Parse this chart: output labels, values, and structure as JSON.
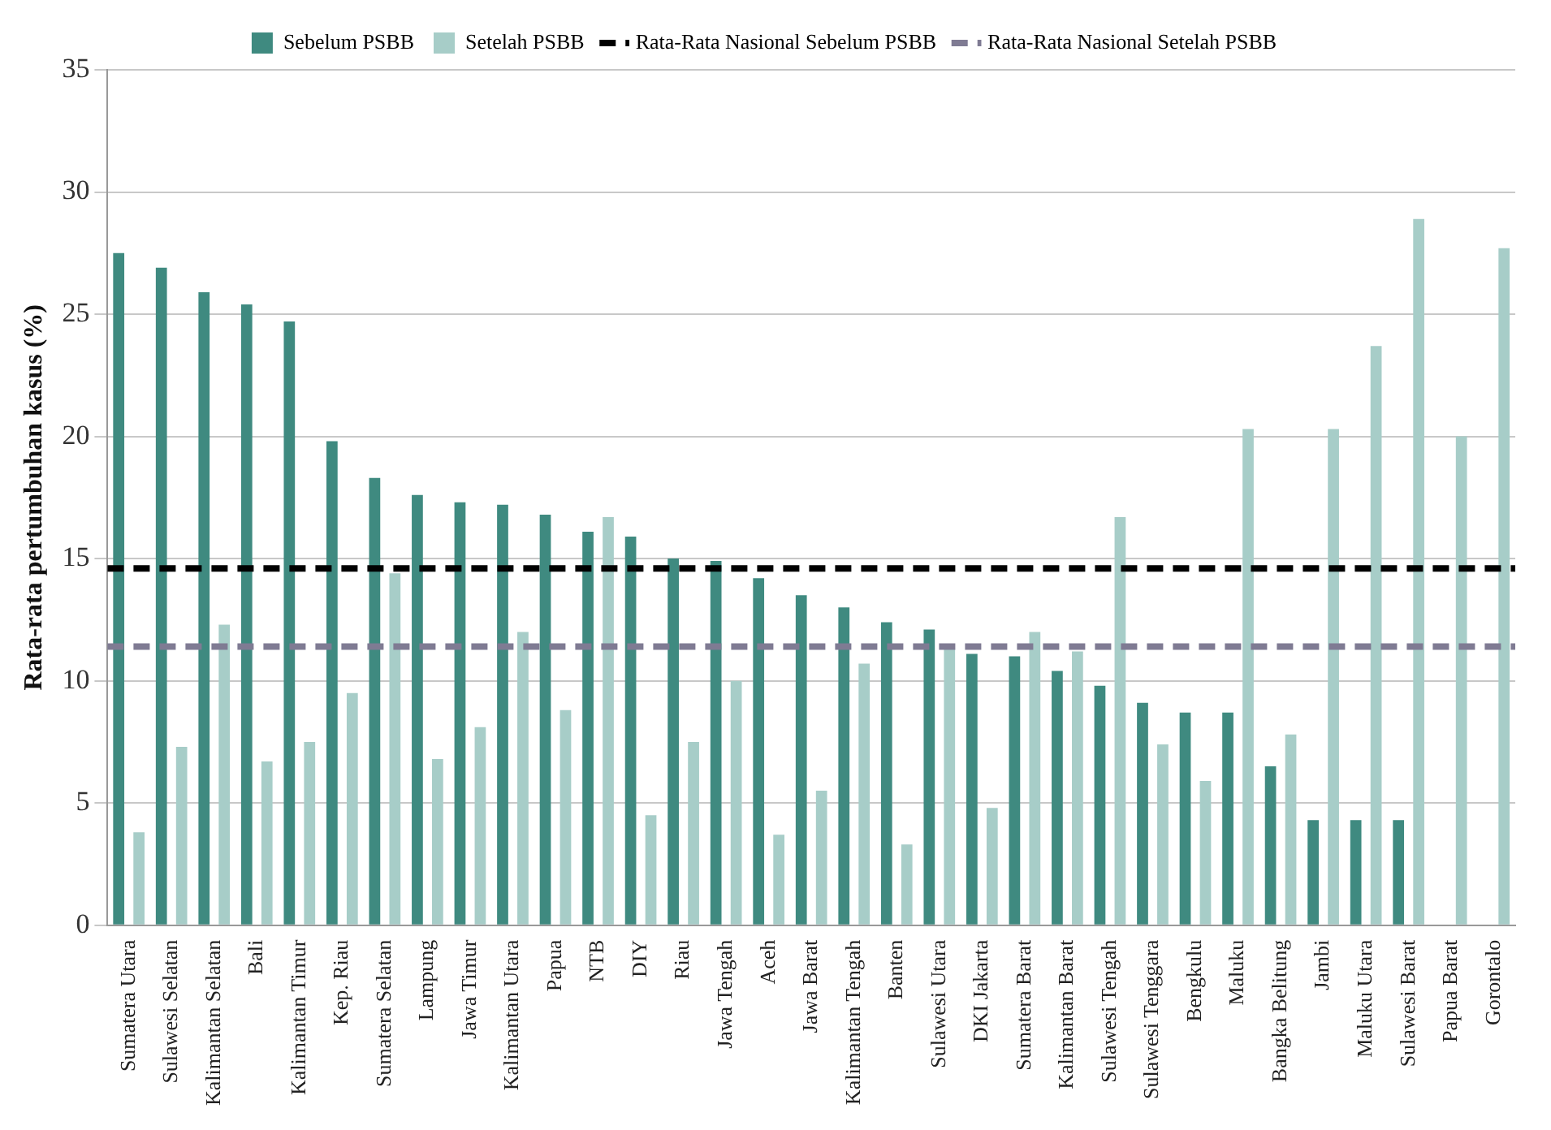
{
  "chart_data": {
    "type": "bar",
    "ylabel": "Rata-rata pertumbuhan kasus (%)",
    "categories": [
      "Sumatera Utara",
      "Sulawesi Selatan",
      "Kalimantan Selatan",
      "Bali",
      "Kalimantan Timur",
      "Kep. Riau",
      "Sumatera Selatan",
      "Lampung",
      "Jawa Timur",
      "Kalimantan Utara",
      "Papua",
      "NTB",
      "DIY",
      "Riau",
      "Jawa Tengah",
      "Aceh",
      "Jawa Barat",
      "Kalimantan Tengah",
      "Banten",
      "Sulawesi Utara",
      "DKI Jakarta",
      "Sumatera Barat",
      "Kalimantan Barat",
      "Sulawesi Tengah",
      "Sulawesi Tenggara",
      "Bengkulu",
      "Maluku",
      "Bangka Belitung",
      "Jambi",
      "Maluku Utara",
      "Sulawesi Barat",
      "Papua Barat",
      "Gorontalo"
    ],
    "series": [
      {
        "name": "Sebelum PSBB",
        "color": "#3f8a80",
        "values": [
          27.5,
          26.9,
          25.9,
          25.4,
          24.7,
          19.8,
          18.3,
          17.6,
          17.3,
          17.2,
          16.8,
          16.1,
          15.9,
          15.0,
          14.9,
          14.2,
          13.5,
          13.0,
          12.4,
          12.1,
          11.1,
          11.0,
          10.4,
          9.8,
          9.1,
          8.7,
          8.7,
          6.5,
          4.3,
          4.3,
          4.3,
          null,
          null
        ]
      },
      {
        "name": "Setelah PSBB",
        "color": "#a7cdc8",
        "values": [
          3.8,
          7.3,
          12.3,
          6.7,
          7.5,
          9.5,
          14.4,
          6.8,
          8.1,
          12.0,
          8.8,
          16.7,
          4.5,
          7.5,
          10.0,
          3.7,
          5.5,
          10.7,
          3.3,
          11.3,
          4.8,
          12.0,
          11.2,
          16.7,
          7.4,
          5.9,
          20.3,
          7.8,
          20.3,
          23.7,
          28.9,
          20.0,
          27.7
        ]
      }
    ],
    "ref_lines": [
      {
        "axis": "y",
        "value": 14.6,
        "label": "Rata-Rata Nasional Sebelum PSBB",
        "color": "#000000",
        "line_style": "dashed"
      },
      {
        "axis": "y",
        "value": 11.4,
        "label": "Rata-Rata Nasional Setelah PSBB",
        "color": "#7f7b93",
        "line_style": "dashed"
      }
    ],
    "ylim": [
      0,
      35
    ],
    "yticks": [
      0,
      5,
      10,
      15,
      20,
      25,
      30,
      35
    ],
    "grid": "y",
    "legend": "top"
  }
}
